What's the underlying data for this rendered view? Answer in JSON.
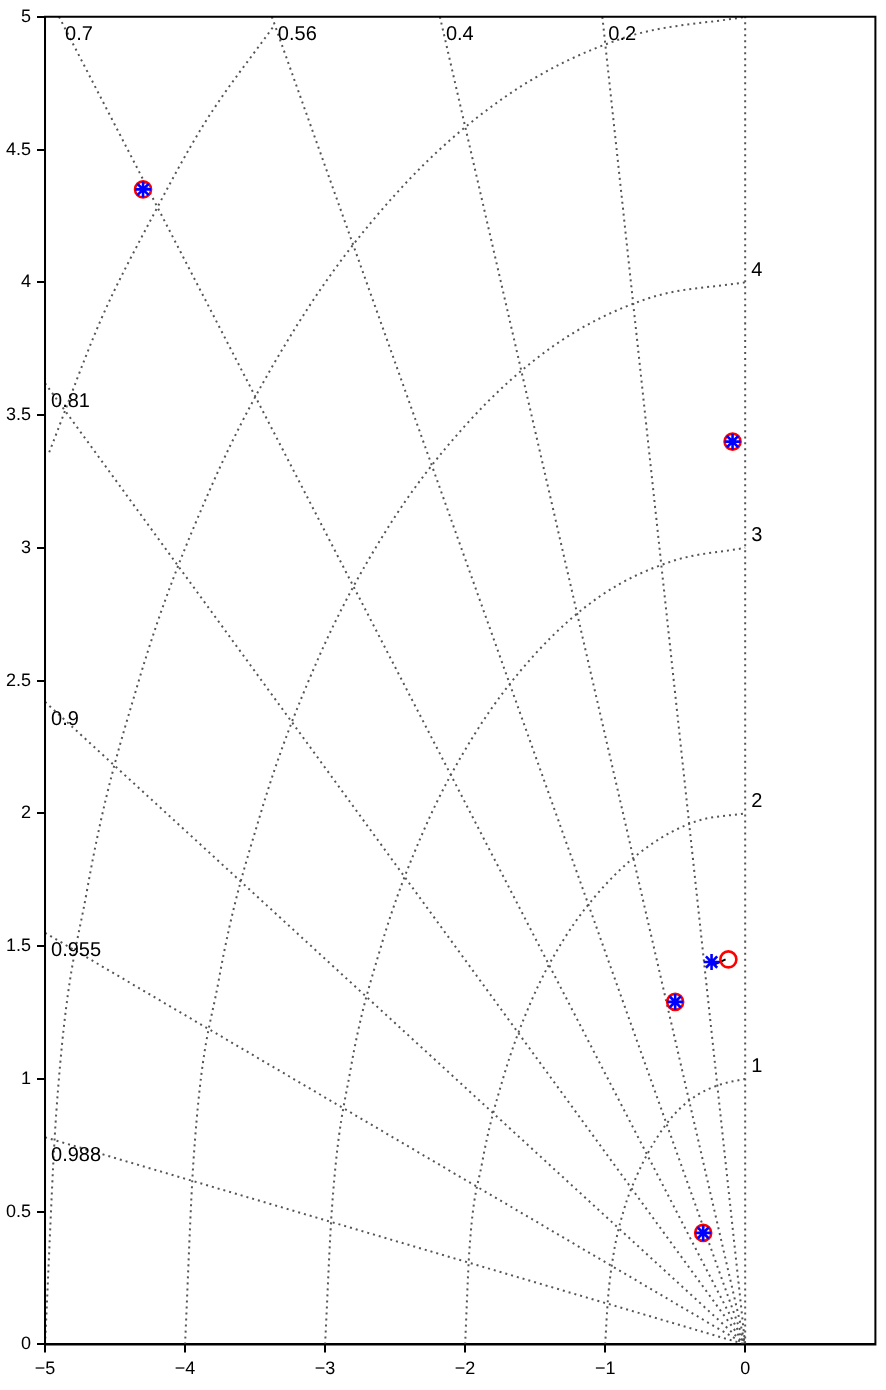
{
  "chart_data": {
    "type": "scatter",
    "xlim": [
      -5,
      0.93
    ],
    "ylim": [
      0,
      5
    ],
    "xticks": [
      -5,
      -4,
      -3,
      -2,
      -1,
      0
    ],
    "yticks": [
      0,
      0.5,
      1,
      1.5,
      2,
      2.5,
      3,
      3.5,
      4,
      4.5,
      5
    ],
    "grid": false,
    "legend": false,
    "series": [
      {
        "type": "line",
        "color": "#555555",
        "line_style": "dotted",
        "marker": "none",
        "x": [
          -1.02,
          0
        ],
        "values": [
          5,
          0
        ]
      },
      {
        "type": "line",
        "color": "#555555",
        "line_style": "dotted",
        "marker": "none",
        "x": [
          -2.18,
          0
        ],
        "values": [
          5,
          0
        ]
      },
      {
        "type": "line",
        "color": "#555555",
        "line_style": "dotted",
        "marker": "none",
        "x": [
          -3.38,
          0
        ],
        "values": [
          5,
          0
        ]
      },
      {
        "type": "line",
        "color": "#555555",
        "line_style": "dotted",
        "marker": "none",
        "x": [
          -4.9,
          0
        ],
        "values": [
          5,
          0
        ]
      },
      {
        "type": "line",
        "color": "#555555",
        "line_style": "dotted",
        "marker": "none",
        "x": [
          -5,
          0
        ],
        "values": [
          3.62,
          0
        ]
      },
      {
        "type": "line",
        "color": "#555555",
        "line_style": "dotted",
        "marker": "none",
        "x": [
          -5,
          0
        ],
        "values": [
          2.42,
          0
        ]
      },
      {
        "type": "line",
        "color": "#555555",
        "line_style": "dotted",
        "marker": "none",
        "x": [
          -5,
          0
        ],
        "values": [
          1.55,
          0
        ]
      },
      {
        "type": "line",
        "color": "#555555",
        "line_style": "dotted",
        "marker": "none",
        "x": [
          -5,
          0
        ],
        "values": [
          0.78,
          0
        ]
      },
      {
        "type": "line",
        "color": "#555555",
        "line_style": "dotted",
        "marker": "none",
        "x": [
          0,
          0
        ],
        "values": [
          0,
          5
        ]
      },
      {
        "type": "line",
        "color": "#555555",
        "line_style": "dotted",
        "marker": "none",
        "x": [
          -1,
          -0.98,
          -0.94,
          -0.87,
          -0.77,
          -0.64,
          -0.5,
          -0.34,
          -0.17,
          0
        ],
        "values": [
          0,
          0.17,
          0.34,
          0.5,
          0.64,
          0.77,
          0.87,
          0.94,
          0.98,
          1
        ]
      },
      {
        "type": "line",
        "color": "#555555",
        "line_style": "dotted",
        "marker": "none",
        "x": [
          -2,
          -1.97,
          -1.88,
          -1.73,
          -1.53,
          -1.29,
          -1,
          -0.68,
          -0.35,
          0
        ],
        "values": [
          0,
          0.35,
          0.68,
          1,
          1.29,
          1.53,
          1.73,
          1.88,
          1.97,
          2
        ]
      },
      {
        "type": "line",
        "color": "#555555",
        "line_style": "dotted",
        "marker": "none",
        "x": [
          -3,
          -2.95,
          -2.82,
          -2.6,
          -2.3,
          -1.93,
          -1.5,
          -1.03,
          -0.52,
          0
        ],
        "values": [
          0,
          0.52,
          1.03,
          1.5,
          1.93,
          2.3,
          2.6,
          2.82,
          2.95,
          3
        ]
      },
      {
        "type": "line",
        "color": "#555555",
        "line_style": "dotted",
        "marker": "none",
        "x": [
          -4,
          -3.94,
          -3.76,
          -3.46,
          -3.06,
          -2.57,
          -2,
          -1.37,
          -0.69,
          0
        ],
        "values": [
          0,
          0.69,
          1.37,
          2,
          2.57,
          3.06,
          3.46,
          3.76,
          3.94,
          4
        ]
      },
      {
        "type": "line",
        "color": "#555555",
        "line_style": "dotted",
        "marker": "none",
        "x": [
          -5,
          -4.92,
          -4.7,
          -4.33,
          -3.83,
          -3.21,
          -2.5,
          -1.71,
          -0.87,
          0
        ],
        "values": [
          0,
          0.87,
          1.71,
          2.5,
          3.21,
          3.83,
          4.33,
          4.7,
          4.92,
          5
        ]
      },
      {
        "type": "line",
        "color": "#555555",
        "line_style": "dotted",
        "marker": "none",
        "x": [
          -4.97,
          -4.6,
          -4.24,
          -3.86,
          -3.36
        ],
        "values": [
          3.36,
          3.86,
          4.24,
          4.6,
          4.97
        ]
      },
      {
        "type": "line",
        "color": "#000000",
        "line_style": "solid",
        "marker": "none",
        "x": [
          -0.22,
          -0.14
        ],
        "values": [
          1.43,
          1.45
        ]
      },
      {
        "color": "#ff0000",
        "marker": "circle",
        "x": [
          -4.3,
          -0.09,
          -0.5,
          -0.3,
          -0.12
        ],
        "values": [
          4.35,
          3.4,
          1.29,
          0.42,
          1.45
        ]
      },
      {
        "color": "#0000ff",
        "marker": "cross",
        "x": [
          -4.3,
          -0.09,
          -0.5,
          -0.3,
          -0.24
        ],
        "values": [
          4.35,
          3.4,
          1.29,
          0.42,
          1.44
        ]
      }
    ],
    "annotations": [
      {
        "text": "0.7",
        "x": -4.9,
        "y": 5
      },
      {
        "text": "0.56",
        "x": -3.38,
        "y": 5
      },
      {
        "text": "0.4",
        "x": -2.18,
        "y": 5
      },
      {
        "text": "0.2",
        "x": -1.02,
        "y": 5
      },
      {
        "text": "0.81",
        "x": -5,
        "y": 3.62
      },
      {
        "text": "0.9",
        "x": -5,
        "y": 2.42
      },
      {
        "text": "0.955",
        "x": -5,
        "y": 1.55
      },
      {
        "text": "0.988",
        "x": -5,
        "y": 0.78
      },
      {
        "text": "4",
        "x": 0,
        "y": 4
      },
      {
        "text": "3",
        "x": 0,
        "y": 3
      },
      {
        "text": "2",
        "x": 0,
        "y": 2
      },
      {
        "text": "1",
        "x": 0,
        "y": 1
      }
    ]
  }
}
